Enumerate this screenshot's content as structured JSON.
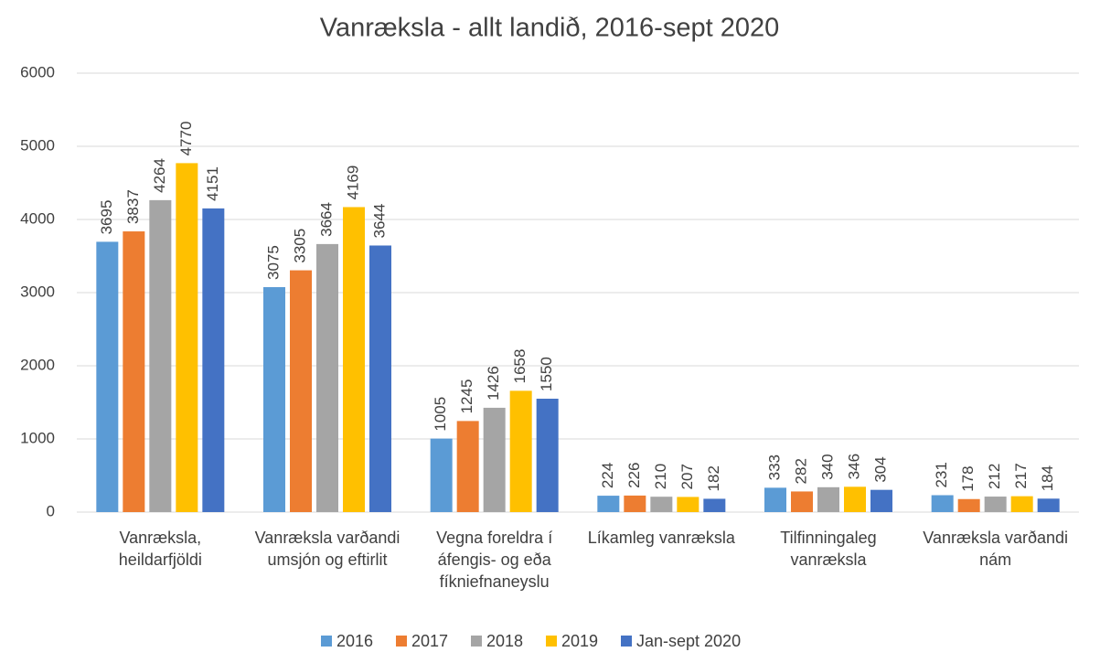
{
  "chart_data": {
    "type": "bar",
    "title": "Vanræksla - allt landið, 2016-sept 2020",
    "categories": [
      "Vanræksla, heildarfjöldi",
      "Vanræksla varðandi umsjón og eftirlit",
      "Vegna foreldra í áfengis- og eða fíkniefnaneyslu",
      "Líkamleg vanræksla",
      "Tilfinningaleg vanræksla",
      "Vanræksla varðandi nám"
    ],
    "series": [
      {
        "name": "2016",
        "color": "#5b9bd5",
        "values": [
          3695,
          3075,
          1005,
          224,
          333,
          231
        ]
      },
      {
        "name": "2017",
        "color": "#ed7d31",
        "values": [
          3837,
          3305,
          1245,
          226,
          282,
          178
        ]
      },
      {
        "name": "2018",
        "color": "#a5a5a5",
        "values": [
          4264,
          3664,
          1426,
          210,
          340,
          212
        ]
      },
      {
        "name": "2019",
        "color": "#ffc000",
        "values": [
          4770,
          4169,
          1658,
          207,
          346,
          217
        ]
      },
      {
        "name": "Jan-sept 2020",
        "color": "#4472c4",
        "values": [
          4151,
          3644,
          1550,
          182,
          304,
          184
        ]
      }
    ],
    "ylim": [
      0,
      6000
    ],
    "yticks": [
      0,
      1000,
      2000,
      3000,
      4000,
      5000,
      6000
    ],
    "grid": true,
    "legend": "bottom"
  }
}
